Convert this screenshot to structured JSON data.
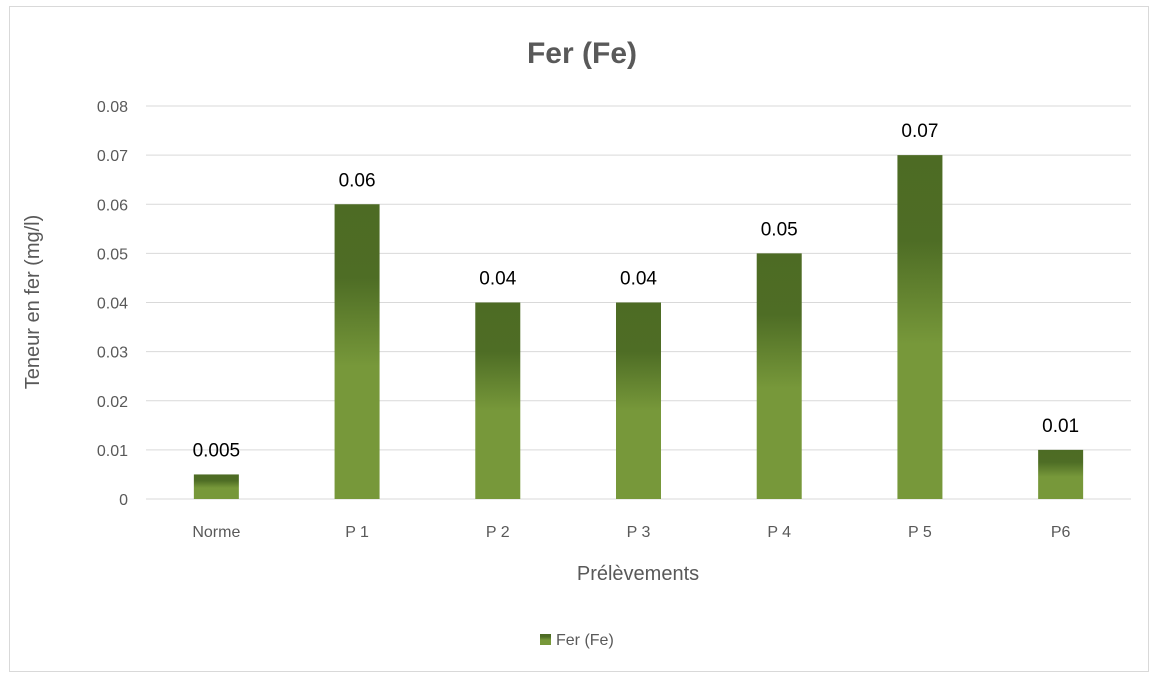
{
  "chart_data": {
    "type": "bar",
    "title": "Fer (Fe)",
    "xlabel": "Prélèvements",
    "ylabel": "Teneur en fer  (mg/l)",
    "categories": [
      "Norme",
      "P 1",
      "P 2",
      "P 3",
      "P 4",
      "P 5",
      "P6"
    ],
    "series": [
      {
        "name": "Fer (Fe)",
        "values": [
          0.005,
          0.06,
          0.04,
          0.04,
          0.05,
          0.07,
          0.01
        ],
        "data_labels": [
          "0.005",
          "0.06",
          "0.04",
          "0.04",
          "0.05",
          "0.07",
          "0.01"
        ]
      }
    ],
    "y_ticks": [
      "0",
      "0.01",
      "0.02",
      "0.03",
      "0.04",
      "0.05",
      "0.06",
      "0.07",
      "0.08"
    ],
    "ylim": [
      0,
      0.08
    ],
    "grid": true,
    "legend_position": "bottom",
    "colors": {
      "bar_top": "#4d6b24",
      "bar_mid": "#4e6d25",
      "bar_bottom": "#77983a",
      "gridline": "#d9d9d9",
      "text": "#595959"
    }
  }
}
